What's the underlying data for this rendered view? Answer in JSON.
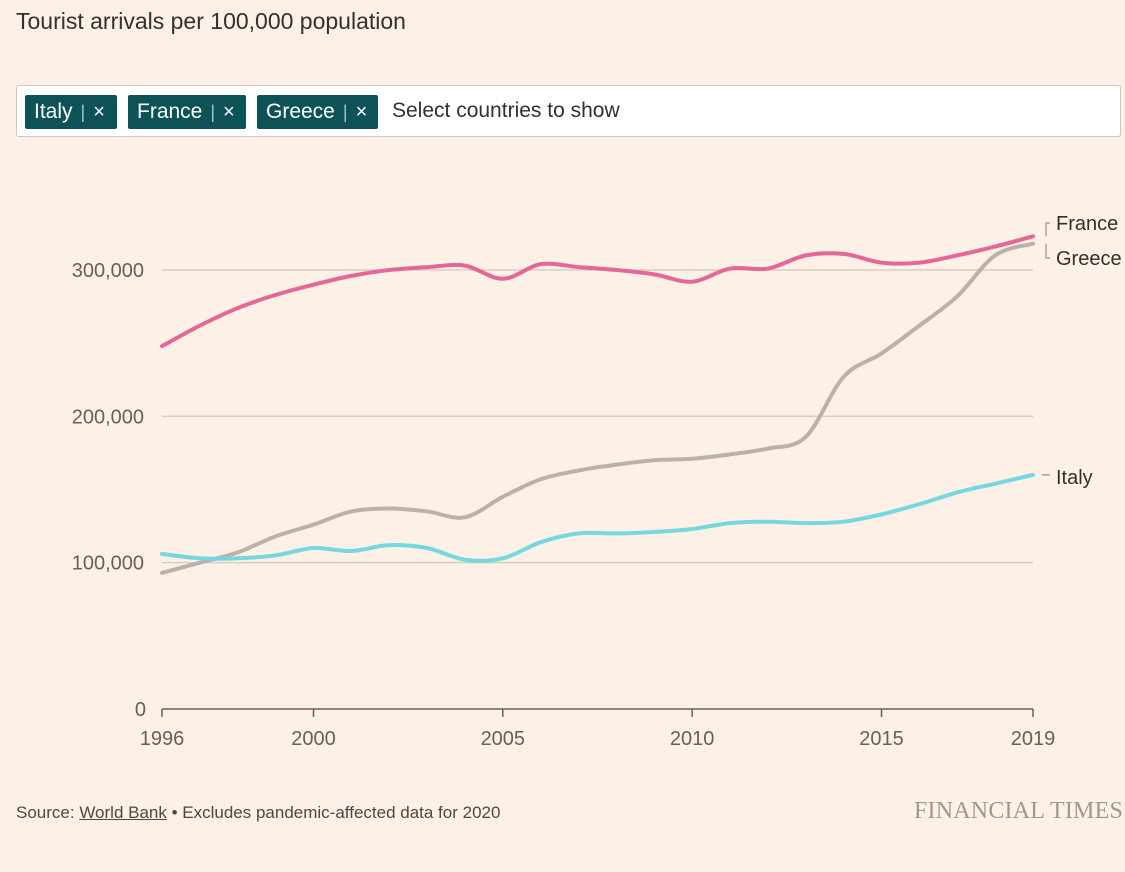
{
  "header": {
    "title": "Tourist arrivals per 100,000 population"
  },
  "selector": {
    "chips": [
      {
        "label": "Italy",
        "separator": "|",
        "remove": "×"
      },
      {
        "label": "France",
        "separator": "|",
        "remove": "×"
      },
      {
        "label": "Greece",
        "separator": "|",
        "remove": "×"
      }
    ],
    "placeholder": "Select countries to show"
  },
  "chart_data": {
    "type": "line",
    "xlim": [
      1996,
      2019
    ],
    "ylim": [
      0,
      300000
    ],
    "x_ticks": [
      1996,
      2000,
      2005,
      2010,
      2015,
      2019
    ],
    "y_ticks": [
      {
        "value": 0,
        "label": "0"
      },
      {
        "value": 100000,
        "label": "100,000"
      },
      {
        "value": 200000,
        "label": "200,000"
      },
      {
        "value": 300000,
        "label": "300,000"
      }
    ],
    "grid": true,
    "legend": "line-end labels on right",
    "x": [
      1996,
      1997,
      1998,
      1999,
      2000,
      2001,
      2002,
      2003,
      2004,
      2005,
      2006,
      2007,
      2008,
      2009,
      2010,
      2011,
      2012,
      2013,
      2014,
      2015,
      2016,
      2017,
      2018,
      2019
    ],
    "series": [
      {
        "name": "France",
        "color": "#e5679a",
        "values": [
          248000,
          262000,
          274000,
          283000,
          290000,
          296000,
          300000,
          302000,
          303000,
          294000,
          304000,
          302000,
          300000,
          297000,
          292000,
          301000,
          301000,
          310000,
          311000,
          305000,
          305000,
          310000,
          316000,
          323000
        ]
      },
      {
        "name": "Greece",
        "color": "#bcb1aa",
        "values": [
          93000,
          100000,
          107000,
          118000,
          126000,
          135000,
          137000,
          135000,
          131000,
          145000,
          157000,
          163000,
          167000,
          170000,
          171000,
          174000,
          178000,
          186000,
          227000,
          243000,
          262000,
          282000,
          310000,
          318000
        ]
      },
      {
        "name": "Italy",
        "color": "#75d7e0",
        "values": [
          106000,
          103000,
          103000,
          105000,
          110000,
          108000,
          112000,
          110000,
          102000,
          103000,
          114000,
          120000,
          120000,
          121000,
          123000,
          127000,
          128000,
          127000,
          128000,
          133000,
          140000,
          148000,
          154000,
          160000
        ]
      }
    ]
  },
  "footer": {
    "source_prefix": "Source: ",
    "source_link": "World Bank",
    "note": " • Excludes pandemic-affected data for 2020",
    "brand": "FINANCIAL TIMES"
  }
}
